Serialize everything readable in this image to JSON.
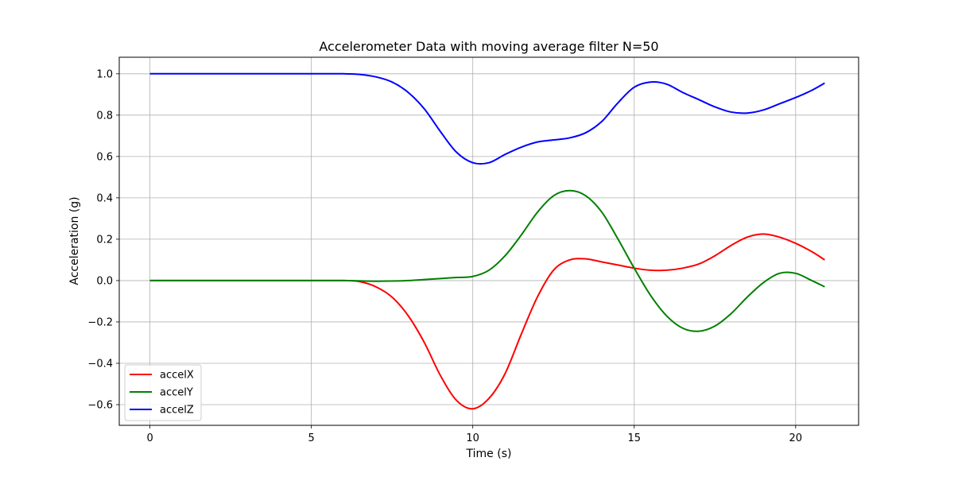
{
  "chart_data": {
    "type": "line",
    "title": "Accelerometer Data with moving average filter N=50",
    "xlabel": "Time (s)",
    "ylabel": "Acceleration (g)",
    "xlim": [
      -0.95,
      21.95
    ],
    "ylim": [
      -0.7,
      1.08
    ],
    "xticks": [
      0,
      5,
      10,
      15,
      20
    ],
    "xtick_labels": [
      "0",
      "5",
      "10",
      "15",
      "20"
    ],
    "yticks": [
      -0.6,
      -0.4,
      -0.2,
      0.0,
      0.2,
      0.4,
      0.6,
      0.8,
      1.0
    ],
    "ytick_labels": [
      "−0.6",
      "−0.4",
      "−0.2",
      "0.0",
      "0.2",
      "0.4",
      "0.6",
      "0.8",
      "1.0"
    ],
    "grid": true,
    "legend_position": "lower-left",
    "series": [
      {
        "name": "accelX",
        "color": "#ff0000",
        "x": [
          0,
          5,
          6.0,
          6.5,
          7.0,
          7.5,
          8.0,
          8.5,
          9.0,
          9.5,
          10.0,
          10.5,
          11.0,
          11.5,
          12.0,
          12.5,
          13.0,
          13.5,
          14.0,
          14.5,
          15.0,
          15.5,
          16.0,
          16.5,
          17.0,
          17.5,
          18.0,
          18.5,
          19.0,
          19.5,
          20.0,
          20.5,
          20.9
        ],
        "y": [
          0.0,
          0.0,
          0.0,
          -0.005,
          -0.03,
          -0.08,
          -0.17,
          -0.3,
          -0.46,
          -0.58,
          -0.62,
          -0.57,
          -0.45,
          -0.26,
          -0.08,
          0.05,
          0.1,
          0.105,
          0.09,
          0.075,
          0.06,
          0.05,
          0.05,
          0.06,
          0.08,
          0.12,
          0.17,
          0.21,
          0.225,
          0.21,
          0.18,
          0.14,
          0.1
        ]
      },
      {
        "name": "accelY",
        "color": "#008000",
        "x": [
          0,
          5,
          6.0,
          7.0,
          7.5,
          8.0,
          8.5,
          9.0,
          9.5,
          10.0,
          10.5,
          11.0,
          11.5,
          12.0,
          12.5,
          13.0,
          13.5,
          14.0,
          14.5,
          15.0,
          15.5,
          16.0,
          16.5,
          17.0,
          17.5,
          18.0,
          18.5,
          19.0,
          19.5,
          20.0,
          20.5,
          20.9
        ],
        "y": [
          0.0,
          0.0,
          0.0,
          -0.003,
          -0.002,
          0.0,
          0.005,
          0.01,
          0.015,
          0.02,
          0.05,
          0.12,
          0.22,
          0.33,
          0.41,
          0.435,
          0.41,
          0.33,
          0.2,
          0.06,
          -0.07,
          -0.17,
          -0.23,
          -0.245,
          -0.22,
          -0.16,
          -0.08,
          -0.01,
          0.035,
          0.035,
          0.0,
          -0.03
        ]
      },
      {
        "name": "accelZ",
        "color": "#0000ff",
        "x": [
          0,
          5,
          6.0,
          6.5,
          7.0,
          7.5,
          8.0,
          8.5,
          9.0,
          9.5,
          10.0,
          10.5,
          11.0,
          11.5,
          12.0,
          12.5,
          13.0,
          13.5,
          14.0,
          14.5,
          15.0,
          15.5,
          16.0,
          16.5,
          17.0,
          17.5,
          18.0,
          18.5,
          19.0,
          19.5,
          20.0,
          20.5,
          20.9
        ],
        "y": [
          1.0,
          1.0,
          1.0,
          0.997,
          0.985,
          0.96,
          0.91,
          0.83,
          0.72,
          0.62,
          0.57,
          0.57,
          0.61,
          0.645,
          0.67,
          0.68,
          0.69,
          0.715,
          0.77,
          0.86,
          0.935,
          0.96,
          0.95,
          0.91,
          0.875,
          0.84,
          0.815,
          0.81,
          0.825,
          0.855,
          0.885,
          0.92,
          0.955
        ]
      }
    ]
  }
}
